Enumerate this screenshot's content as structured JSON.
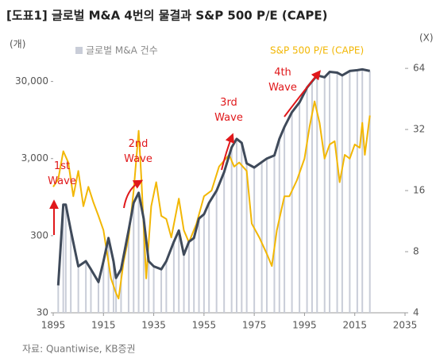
{
  "chart_data": {
    "type": "bar-line",
    "title": "[도표1] 글로벌 M&A 4번의 물결과 S&P 500 P/E (CAPE)",
    "y_unit": "(개)",
    "y2_unit": "(X)",
    "source": "자료: Quantiwise, KB증권",
    "annotations": [
      "1st Wave",
      "2nd Wave",
      "3rd Wave",
      "4th Wave"
    ],
    "xlim": [
      1895,
      2035
    ],
    "xticks": [
      1895,
      1915,
      1935,
      1955,
      1975,
      1995,
      2015,
      2035
    ],
    "ylim": [
      30,
      65000
    ],
    "log_scale": true,
    "yticks": [
      30,
      300,
      {
        "value": 3000,
        "label": "3,000"
      },
      {
        "value": 30000,
        "label": "30,000"
      }
    ],
    "y2lim": [
      4,
      74
    ],
    "y2ticks": [
      4,
      8,
      16,
      32,
      64
    ],
    "series": [
      {
        "name": "글로벌 M&A 건수",
        "color": "#c9cdd8",
        "line_color": "#3f4a5a",
        "x": [
          1897,
          1899,
          1900,
          1902,
          1905,
          1908,
          1910,
          1913,
          1915,
          1917,
          1919,
          1920,
          1922,
          1925,
          1927,
          1929,
          1931,
          1933,
          1935,
          1938,
          1940,
          1943,
          1945,
          1947,
          1949,
          1951,
          1953,
          1955,
          1957,
          1960,
          1963,
          1966,
          1968,
          1970,
          1972,
          1975,
          1978,
          1980,
          1983,
          1985,
          1987,
          1990,
          1993,
          1996,
          1998,
          2000,
          2003,
          2005,
          2008,
          2010,
          2013,
          2016,
          2018,
          2021
        ],
        "values": [
          68,
          760,
          760,
          350,
          120,
          140,
          110,
          75,
          140,
          280,
          140,
          85,
          110,
          350,
          800,
          1080,
          500,
          140,
          120,
          110,
          140,
          250,
          350,
          170,
          250,
          280,
          500,
          570,
          800,
          1150,
          2000,
          4200,
          5400,
          4800,
          2600,
          2300,
          2700,
          3000,
          3300,
          5400,
          7700,
          12000,
          16000,
          25000,
          30000,
          36000,
          34000,
          40000,
          39000,
          36000,
          41000,
          42000,
          43000,
          41000
        ]
      },
      {
        "name": "S&P 500 P/E (CAPE)",
        "color": "#f2b705",
        "axis": "y2",
        "x": [
          1895,
          1897,
          1899,
          1901,
          1903,
          1905,
          1907,
          1909,
          1911,
          1913,
          1915,
          1917,
          1918,
          1920,
          1921,
          1923,
          1925,
          1927,
          1929,
          1930,
          1932,
          1934,
          1936,
          1938,
          1940,
          1942,
          1945,
          1947,
          1949,
          1952,
          1955,
          1958,
          1961,
          1965,
          1967,
          1969,
          1972,
          1974,
          1977,
          1980,
          1982,
          1984,
          1987,
          1989,
          1992,
          1995,
          1997,
          1999,
          2001,
          2003,
          2005,
          2007,
          2009,
          2011,
          2013,
          2015,
          2017,
          2018,
          2019,
          2021
        ],
        "values": [
          16.7,
          18.2,
          25,
          22,
          15,
          20,
          13.4,
          16.7,
          14,
          12,
          10.2,
          7.1,
          5.9,
          5,
          4.7,
          7.1,
          9.4,
          16,
          31.5,
          19,
          5.9,
          13.4,
          17.6,
          12,
          11.6,
          9.4,
          14.6,
          10.2,
          8.9,
          11,
          15,
          16,
          21,
          24,
          21,
          22,
          20,
          11,
          9.4,
          7.8,
          6.8,
          10.2,
          15,
          15,
          18,
          23,
          33,
          44,
          34.5,
          23,
          27,
          28,
          17.6,
          24,
          23,
          27,
          26,
          34.5,
          24,
          37.5
        ]
      }
    ]
  }
}
